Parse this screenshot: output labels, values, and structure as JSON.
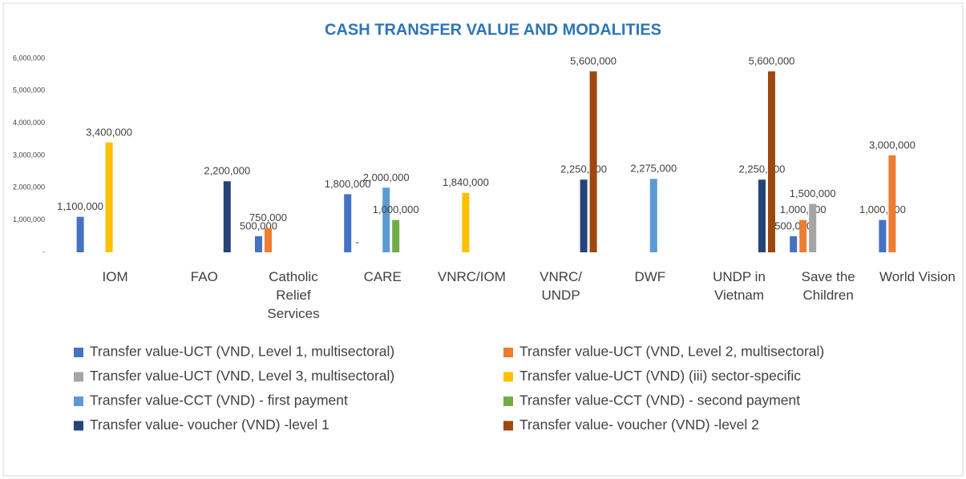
{
  "chart_data": {
    "type": "bar",
    "title": "CASH TRANSFER VALUE AND MODALITIES",
    "categories": [
      "IOM",
      "FAO",
      "Catholic Relief Services",
      "CARE",
      "VNRC/IOM",
      "VNRC/ UNDP",
      "DWF",
      "UNDP in Vietnam",
      "Save the Children",
      "World Vision"
    ],
    "series": [
      {
        "name": "Transfer value-UCT (VND, Level 1, multisectoral)",
        "color": "#4472c4",
        "values": [
          1100000,
          null,
          500000,
          1800000,
          null,
          null,
          null,
          null,
          500000,
          1000000
        ],
        "value_labels": [
          "1,100,000",
          null,
          "500,000",
          "1,800,000",
          null,
          null,
          null,
          null,
          "500,000",
          "1,000,000"
        ]
      },
      {
        "name": "Transfer value-UCT (VND, Level 2, multisectoral)",
        "color": "#ed7d31",
        "values": [
          null,
          null,
          750000,
          0,
          null,
          null,
          null,
          null,
          1000000,
          3000000
        ],
        "value_labels": [
          null,
          null,
          "750,000",
          "-",
          null,
          null,
          null,
          null,
          "1,000,000",
          "3,000,000"
        ]
      },
      {
        "name": "Transfer value-UCT (VND, Level 3, multisectoral)",
        "color": "#a5a5a5",
        "values": [
          null,
          null,
          null,
          null,
          null,
          null,
          null,
          null,
          1500000,
          null
        ],
        "value_labels": [
          null,
          null,
          null,
          null,
          null,
          null,
          null,
          null,
          "1,500,000",
          null
        ]
      },
      {
        "name": "Transfer value-UCT (VND) (iii) sector-specific",
        "color": "#ffc000",
        "values": [
          3400000,
          null,
          null,
          null,
          1840000,
          null,
          null,
          null,
          null,
          null
        ],
        "value_labels": [
          "3,400,000",
          null,
          null,
          null,
          "1,840,000",
          null,
          null,
          null,
          null,
          null
        ]
      },
      {
        "name": "Transfer value-CCT (VND) - first payment",
        "color": "#5b9bd5",
        "values": [
          null,
          null,
          null,
          2000000,
          null,
          null,
          2275000,
          null,
          null,
          null
        ],
        "value_labels": [
          null,
          null,
          null,
          "2,000,000",
          null,
          null,
          "2,275,000",
          null,
          null,
          null
        ]
      },
      {
        "name": "Transfer value-CCT (VND) - second payment",
        "color": "#70ad47",
        "values": [
          null,
          null,
          null,
          1000000,
          null,
          null,
          null,
          null,
          null,
          null
        ],
        "value_labels": [
          null,
          null,
          null,
          "1,000,000",
          null,
          null,
          null,
          null,
          null,
          null
        ]
      },
      {
        "name": "Transfer value- voucher (VND) -level 1",
        "color": "#264478",
        "values": [
          null,
          2200000,
          null,
          null,
          null,
          2250000,
          null,
          2250000,
          null,
          null
        ],
        "value_labels": [
          null,
          "2,200,000",
          null,
          null,
          null,
          "2,250,000",
          null,
          "2,250,000",
          null,
          null
        ]
      },
      {
        "name": "Transfer value- voucher (VND) -level 2",
        "color": "#9e480e",
        "values": [
          null,
          null,
          null,
          null,
          null,
          5600000,
          null,
          5600000,
          null,
          null
        ],
        "value_labels": [
          null,
          null,
          null,
          null,
          null,
          "5,600,000",
          null,
          "5,600,000",
          null,
          null
        ]
      }
    ],
    "ylim": [
      0,
      6000000
    ],
    "yticks": [
      {
        "value": 0,
        "label": "-"
      },
      {
        "value": 1000000,
        "label": "1,000,000"
      },
      {
        "value": 2000000,
        "label": "2,000,000"
      },
      {
        "value": 3000000,
        "label": "3,000,000"
      },
      {
        "value": 4000000,
        "label": "4,000,000"
      },
      {
        "value": 5000000,
        "label": "5,000,000"
      },
      {
        "value": 6000000,
        "label": "6,000,000"
      }
    ],
    "grid": false,
    "legend": "bottom"
  }
}
